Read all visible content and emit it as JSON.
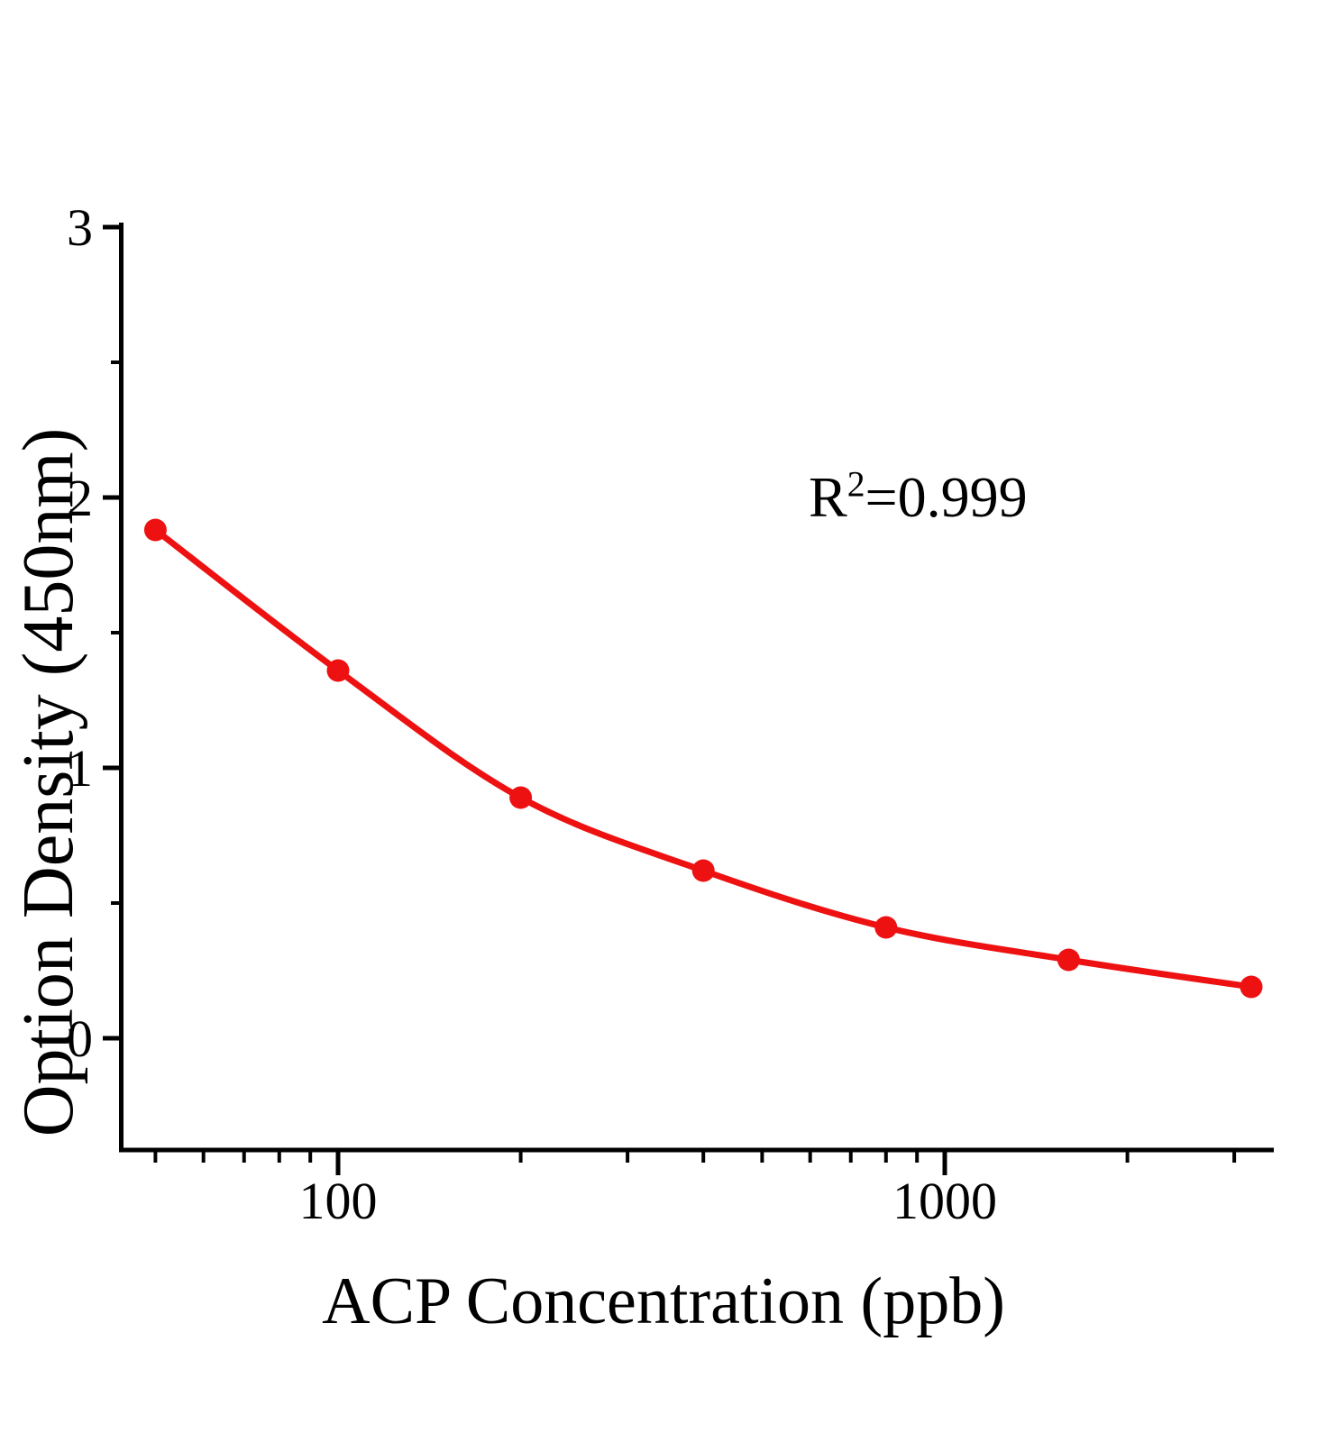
{
  "chart_data": {
    "type": "scatter",
    "title": "",
    "xlabel": "ACP Concentration（ppb）",
    "ylabel": "Option Density（450nm）",
    "x_scale": "log10",
    "y_scale": "linear",
    "x": [
      50,
      100,
      200,
      400,
      800,
      1600,
      3200
    ],
    "y": [
      1.88,
      1.36,
      0.89,
      0.62,
      0.41,
      0.29,
      0.19
    ],
    "marker": "filled-circle",
    "line_style": "smooth",
    "grid": false,
    "legend": "none",
    "xlim": [
      44,
      3480
    ],
    "ylim": [
      -0.42,
      3
    ],
    "x_ticks_major": {
      "values": [
        100,
        1000
      ],
      "labels": [
        "100",
        "1000"
      ]
    },
    "x_ticks_minor": [
      50,
      60,
      70,
      80,
      90,
      200,
      300,
      400,
      500,
      600,
      700,
      800,
      900,
      2000,
      3000
    ],
    "y_ticks_major": {
      "values": [
        0,
        1,
        2,
        3
      ],
      "labels": [
        "0",
        "1",
        "2",
        "3"
      ]
    },
    "y_ticks_minor": [
      0.5,
      1.5,
      2.5
    ],
    "annotation": {
      "base": "R",
      "sup": "2",
      "rest": "=0.999",
      "full_text": "R²=0.999"
    },
    "colors": {
      "series": "#ee1111",
      "axis": "#000000",
      "text": "#000000",
      "background": "#ffffff"
    }
  }
}
